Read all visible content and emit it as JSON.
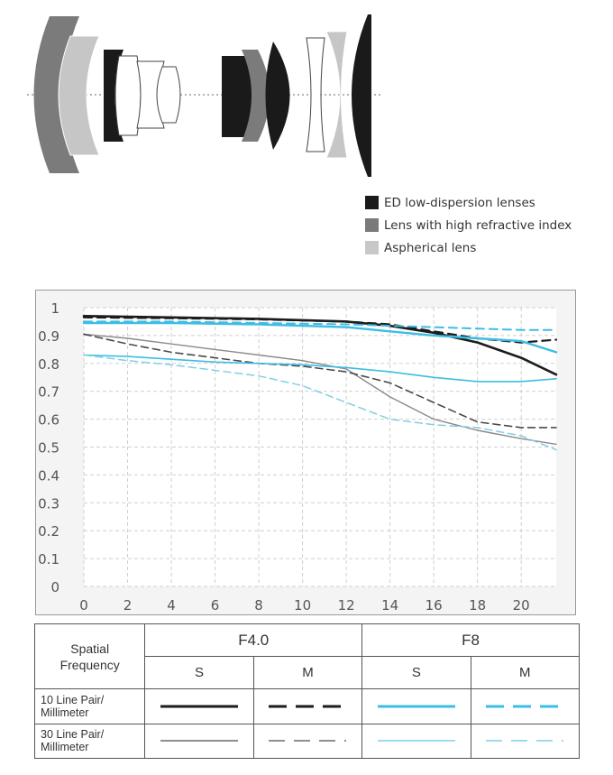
{
  "legend": {
    "items": [
      {
        "label": "ED low-dispersion lenses",
        "color": "#1a1a1a"
      },
      {
        "label": "Lens with high refractive index",
        "color": "#7a7a7a"
      },
      {
        "label": "Aspherical lens",
        "color": "#c8c8c8"
      }
    ]
  },
  "chart_data": {
    "type": "line",
    "x_ticks": [
      0,
      2,
      4,
      6,
      8,
      10,
      12,
      14,
      16,
      18,
      20
    ],
    "y_ticks": [
      "0",
      "0.1",
      "0.2",
      "0.3",
      "0.4",
      "0.5",
      "0.6",
      "0.7",
      "0.8",
      "0.9",
      "1"
    ],
    "xlim": [
      0,
      21.6
    ],
    "ylim": [
      0,
      1
    ],
    "grid": true,
    "series": [
      {
        "key": "s10_f4",
        "color": "#1c1c1c",
        "width": 2.6,
        "dash": "",
        "x": [
          0,
          4,
          8,
          12,
          14,
          16,
          18,
          20,
          21.6
        ],
        "y": [
          0.97,
          0.965,
          0.96,
          0.95,
          0.935,
          0.91,
          0.875,
          0.82,
          0.76
        ]
      },
      {
        "key": "m10_f4",
        "color": "#1c1c1c",
        "width": 2.2,
        "dash": "9,6",
        "x": [
          0,
          4,
          8,
          12,
          14,
          16,
          18,
          20,
          21.6
        ],
        "y": [
          0.965,
          0.962,
          0.958,
          0.95,
          0.94,
          0.915,
          0.89,
          0.875,
          0.885
        ]
      },
      {
        "key": "s10_f8",
        "color": "#3cbde3",
        "width": 2.4,
        "dash": "",
        "x": [
          0,
          4,
          8,
          12,
          14,
          16,
          18,
          20,
          21.6
        ],
        "y": [
          0.945,
          0.945,
          0.94,
          0.93,
          0.915,
          0.9,
          0.89,
          0.88,
          0.84
        ]
      },
      {
        "key": "m10_f8",
        "color": "#3cbde3",
        "width": 2.0,
        "dash": "9,6",
        "x": [
          0,
          4,
          8,
          12,
          14,
          16,
          18,
          20,
          21.6
        ],
        "y": [
          0.95,
          0.95,
          0.945,
          0.94,
          0.935,
          0.93,
          0.925,
          0.92,
          0.92
        ]
      },
      {
        "key": "s30_f4",
        "color": "#8a8a8a",
        "width": 1.4,
        "dash": "",
        "x": [
          0,
          2,
          4,
          6,
          8,
          10,
          12,
          14,
          16,
          18,
          20,
          21.6
        ],
        "y": [
          0.905,
          0.89,
          0.87,
          0.85,
          0.83,
          0.81,
          0.78,
          0.68,
          0.6,
          0.56,
          0.53,
          0.51
        ]
      },
      {
        "key": "m30_f4",
        "color": "#4a4a4a",
        "width": 1.6,
        "dash": "8,5",
        "x": [
          0,
          2,
          4,
          6,
          8,
          10,
          12,
          14,
          16,
          18,
          20,
          21.6
        ],
        "y": [
          0.905,
          0.87,
          0.84,
          0.82,
          0.8,
          0.79,
          0.77,
          0.73,
          0.66,
          0.59,
          0.57,
          0.57
        ]
      },
      {
        "key": "s30_f8",
        "color": "#3cbde3",
        "width": 1.6,
        "dash": "",
        "x": [
          0,
          2,
          4,
          6,
          8,
          10,
          12,
          14,
          16,
          18,
          20,
          21.6
        ],
        "y": [
          0.83,
          0.825,
          0.815,
          0.805,
          0.8,
          0.795,
          0.785,
          0.77,
          0.75,
          0.735,
          0.735,
          0.745
        ]
      },
      {
        "key": "m30_f8",
        "color": "#7fcfe6",
        "width": 1.5,
        "dash": "8,5",
        "x": [
          0,
          2,
          4,
          6,
          8,
          10,
          12,
          14,
          16,
          18,
          20,
          21.6
        ],
        "y": [
          0.83,
          0.81,
          0.795,
          0.775,
          0.755,
          0.72,
          0.66,
          0.6,
          0.58,
          0.57,
          0.54,
          0.49
        ]
      }
    ]
  },
  "table": {
    "spatial_frequency": "Spatial Frequency",
    "f40": "F4.0",
    "f8": "F8",
    "s": "S",
    "m": "M",
    "row1": "10 Line Pair/ Millimeter",
    "row2": "30 Line Pair/ Millimeter"
  }
}
